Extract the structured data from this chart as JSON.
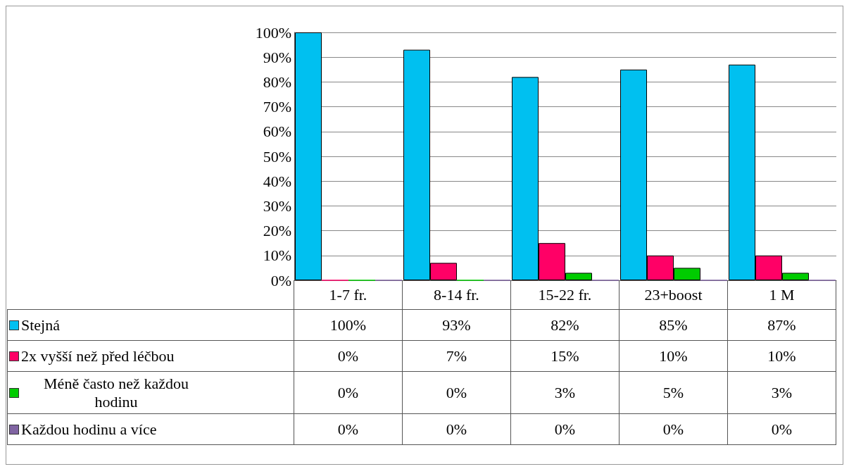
{
  "chart_data": {
    "type": "bar",
    "categories": [
      "1-7 fr.",
      "8-14 fr.",
      "15-22 fr.",
      "23+boost",
      "1 M"
    ],
    "series": [
      {
        "name": "Stejná",
        "color": "#00c0f0",
        "values": [
          100,
          93,
          82,
          85,
          87
        ],
        "value_labels": [
          "100%",
          "93%",
          "82%",
          "85%",
          "87%"
        ]
      },
      {
        "name": "2x vyšší než před léčbou",
        "color": "#ff0066",
        "values": [
          0,
          7,
          15,
          10,
          10
        ],
        "value_labels": [
          "0%",
          "7%",
          "15%",
          "10%",
          "10%"
        ]
      },
      {
        "name": "Méně často než každou hodinu",
        "color": "#00cc00",
        "values": [
          0,
          0,
          3,
          5,
          3
        ],
        "value_labels": [
          "0%",
          "0%",
          "3%",
          "5%",
          "3%"
        ]
      },
      {
        "name": "Každou hodinu a více",
        "color": "#8064a2",
        "values": [
          0,
          0,
          0,
          0,
          0
        ],
        "value_labels": [
          "0%",
          "0%",
          "0%",
          "0%",
          "0%"
        ]
      }
    ],
    "ylim": [
      0,
      100
    ],
    "yticks": [
      {
        "value": 0,
        "label": "0%"
      },
      {
        "value": 10,
        "label": "10%"
      },
      {
        "value": 20,
        "label": "20%"
      },
      {
        "value": 30,
        "label": "30%"
      },
      {
        "value": 40,
        "label": "40%"
      },
      {
        "value": 50,
        "label": "50%"
      },
      {
        "value": 60,
        "label": "60%"
      },
      {
        "value": 70,
        "label": "70%"
      },
      {
        "value": 80,
        "label": "80%"
      },
      {
        "value": 90,
        "label": "90%"
      },
      {
        "value": 100,
        "label": "100%"
      }
    ],
    "grid": "y",
    "legend": "bottom left"
  }
}
